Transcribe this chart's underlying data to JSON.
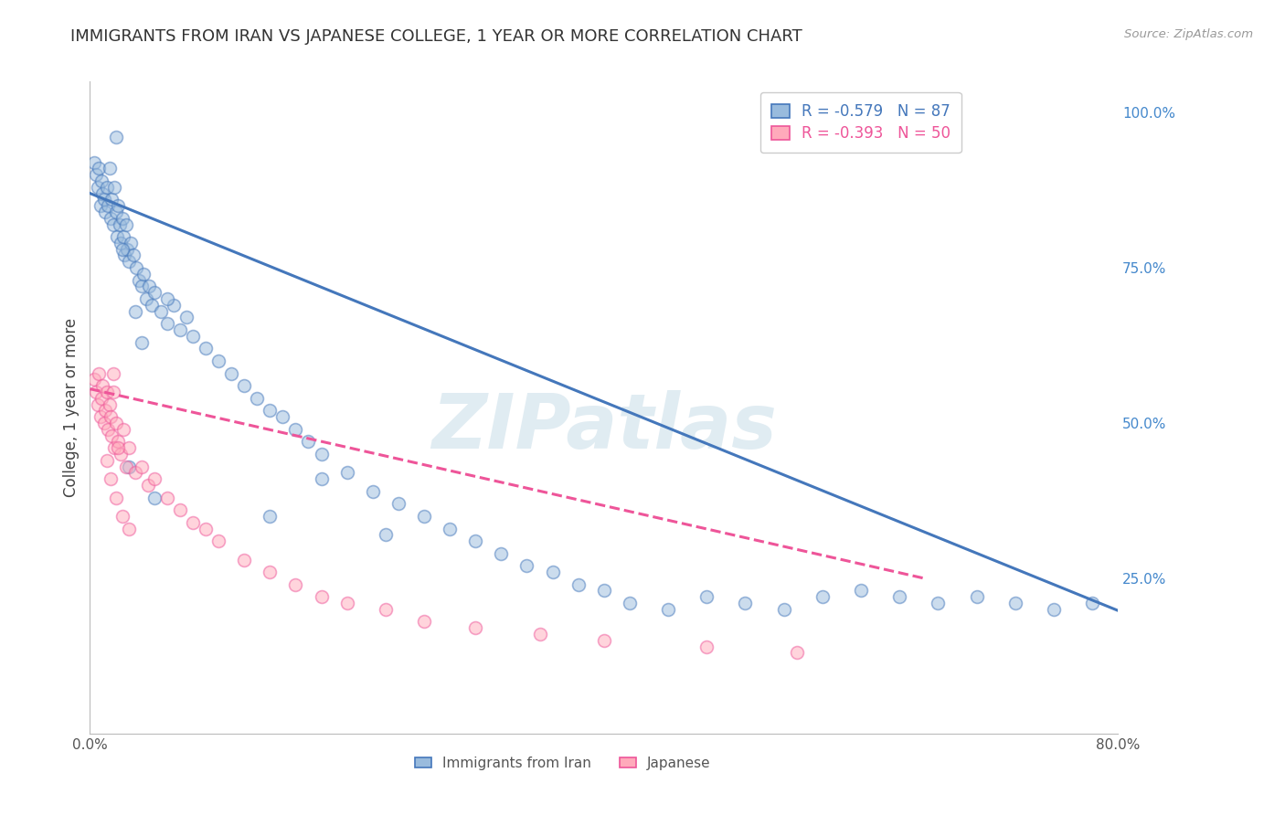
{
  "title": "IMMIGRANTS FROM IRAN VS JAPANESE COLLEGE, 1 YEAR OR MORE CORRELATION CHART",
  "source": "Source: ZipAtlas.com",
  "ylabel": "College, 1 year or more",
  "x_min": 0.0,
  "x_max": 0.8,
  "y_min": 0.0,
  "y_max": 1.05,
  "blue_color": "#4477BB",
  "pink_color": "#EE5599",
  "blue_fill": "#99BBDD",
  "pink_fill": "#FFAABB",
  "watermark_color": "#C8DDE8",
  "grid_color": "#CCCCCC",
  "background_color": "#FFFFFF",
  "title_fontsize": 13,
  "axis_label_fontsize": 12,
  "tick_fontsize": 11,
  "scatter_size": 100,
  "scatter_alpha": 0.5,
  "line_width": 2.2,
  "iran_trend_intercept": 0.87,
  "iran_trend_slope": -0.84,
  "jap_trend_intercept": 0.555,
  "jap_trend_slope": -0.47,
  "iran_x": [
    0.003,
    0.005,
    0.006,
    0.007,
    0.008,
    0.009,
    0.01,
    0.011,
    0.012,
    0.013,
    0.014,
    0.015,
    0.016,
    0.017,
    0.018,
    0.019,
    0.02,
    0.021,
    0.022,
    0.023,
    0.024,
    0.025,
    0.026,
    0.027,
    0.028,
    0.029,
    0.03,
    0.032,
    0.034,
    0.036,
    0.038,
    0.04,
    0.042,
    0.044,
    0.046,
    0.048,
    0.05,
    0.055,
    0.06,
    0.065,
    0.07,
    0.075,
    0.08,
    0.09,
    0.1,
    0.11,
    0.12,
    0.13,
    0.14,
    0.15,
    0.16,
    0.17,
    0.18,
    0.2,
    0.22,
    0.24,
    0.26,
    0.28,
    0.3,
    0.32,
    0.34,
    0.36,
    0.38,
    0.4,
    0.42,
    0.45,
    0.48,
    0.51,
    0.54,
    0.57,
    0.6,
    0.63,
    0.66,
    0.69,
    0.72,
    0.75,
    0.78,
    0.02,
    0.025,
    0.03,
    0.035,
    0.04,
    0.05,
    0.06,
    0.14,
    0.18,
    0.23
  ],
  "iran_y": [
    0.92,
    0.9,
    0.88,
    0.91,
    0.85,
    0.89,
    0.87,
    0.86,
    0.84,
    0.88,
    0.85,
    0.91,
    0.83,
    0.86,
    0.82,
    0.88,
    0.84,
    0.8,
    0.85,
    0.82,
    0.79,
    0.83,
    0.8,
    0.77,
    0.82,
    0.78,
    0.76,
    0.79,
    0.77,
    0.75,
    0.73,
    0.72,
    0.74,
    0.7,
    0.72,
    0.69,
    0.71,
    0.68,
    0.66,
    0.69,
    0.65,
    0.67,
    0.64,
    0.62,
    0.6,
    0.58,
    0.56,
    0.54,
    0.52,
    0.51,
    0.49,
    0.47,
    0.45,
    0.42,
    0.39,
    0.37,
    0.35,
    0.33,
    0.31,
    0.29,
    0.27,
    0.26,
    0.24,
    0.23,
    0.21,
    0.2,
    0.22,
    0.21,
    0.2,
    0.22,
    0.23,
    0.22,
    0.21,
    0.22,
    0.21,
    0.2,
    0.21,
    0.96,
    0.78,
    0.43,
    0.68,
    0.63,
    0.38,
    0.7,
    0.35,
    0.41,
    0.32
  ],
  "jap_x": [
    0.003,
    0.005,
    0.006,
    0.007,
    0.008,
    0.009,
    0.01,
    0.011,
    0.012,
    0.013,
    0.014,
    0.015,
    0.016,
    0.017,
    0.018,
    0.019,
    0.02,
    0.022,
    0.024,
    0.026,
    0.028,
    0.03,
    0.035,
    0.04,
    0.045,
    0.05,
    0.06,
    0.07,
    0.08,
    0.09,
    0.1,
    0.12,
    0.14,
    0.16,
    0.18,
    0.2,
    0.23,
    0.26,
    0.3,
    0.35,
    0.4,
    0.48,
    0.55,
    0.013,
    0.016,
    0.02,
    0.025,
    0.03,
    0.018,
    0.022
  ],
  "jap_y": [
    0.57,
    0.55,
    0.53,
    0.58,
    0.51,
    0.54,
    0.56,
    0.5,
    0.52,
    0.55,
    0.49,
    0.53,
    0.51,
    0.48,
    0.55,
    0.46,
    0.5,
    0.47,
    0.45,
    0.49,
    0.43,
    0.46,
    0.42,
    0.43,
    0.4,
    0.41,
    0.38,
    0.36,
    0.34,
    0.33,
    0.31,
    0.28,
    0.26,
    0.24,
    0.22,
    0.21,
    0.2,
    0.18,
    0.17,
    0.16,
    0.15,
    0.14,
    0.13,
    0.44,
    0.41,
    0.38,
    0.35,
    0.33,
    0.58,
    0.46
  ]
}
